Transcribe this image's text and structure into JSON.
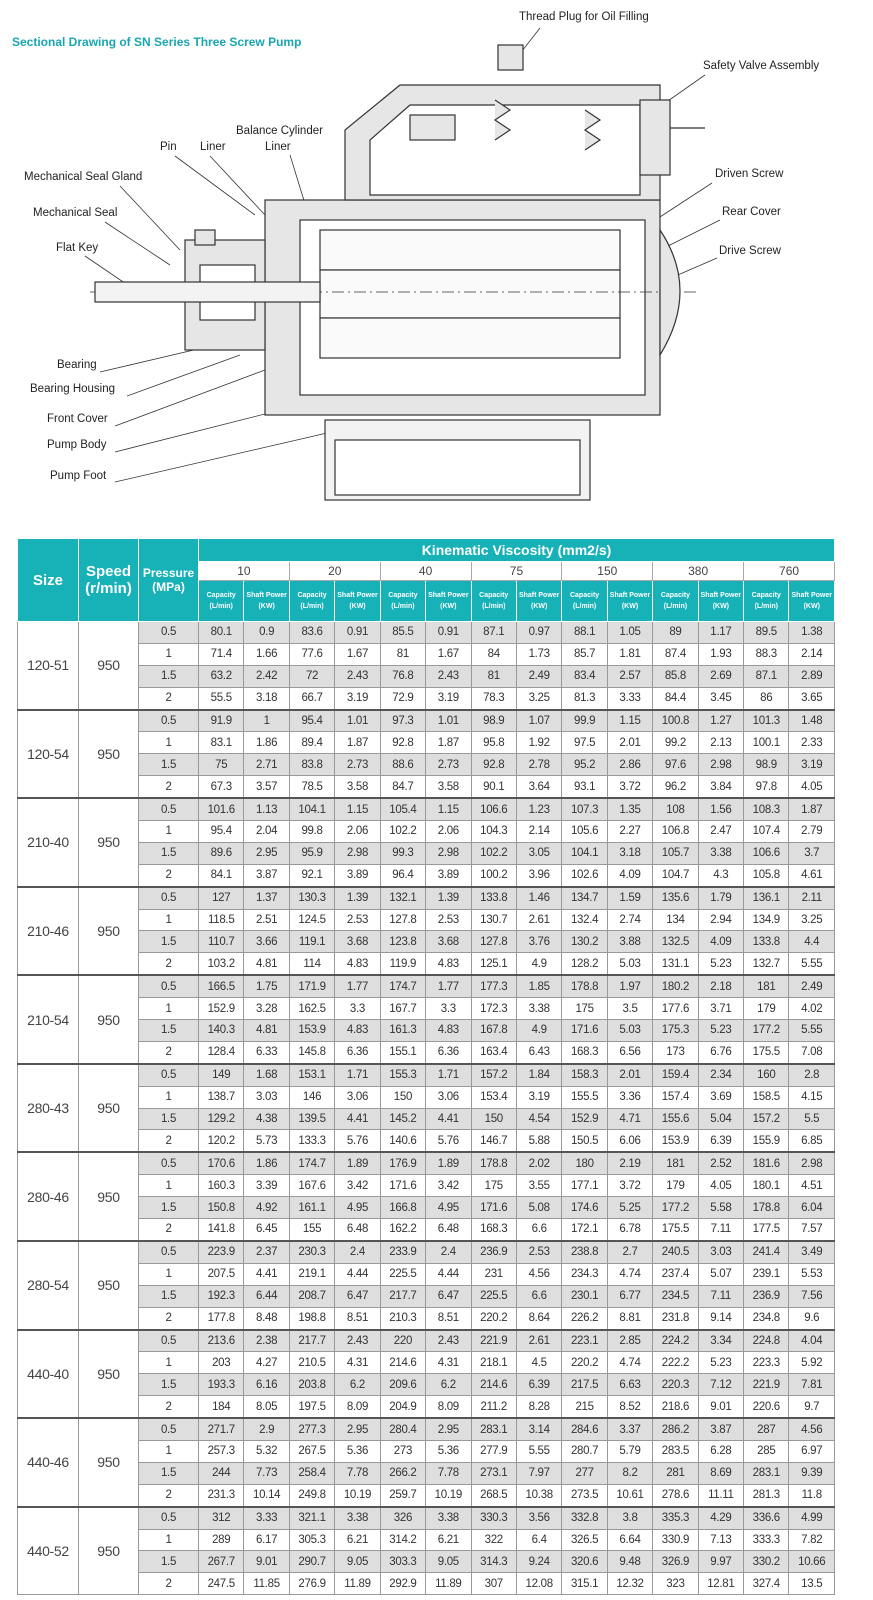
{
  "title": "Sectional Drawing of SN Series Three Screw Pump",
  "labels": {
    "thread_plug": "Thread Plug for Oil Filling",
    "safety_valve": "Safety Valve Assembly",
    "driven_screw": "Driven Screw",
    "rear_cover": "Rear Cover",
    "drive_screw": "Drive Screw",
    "balance_cylinder": "Balance Cylinder",
    "balance_liner": "Liner",
    "pin": "Pin",
    "liner": "Liner",
    "mech_seal_gland": "Mechanical Seal Gland",
    "mech_seal": "Mechanical Seal",
    "flat_key": "Flat Key",
    "bearing": "Bearing",
    "bearing_housing": "Bearing Housing",
    "front_cover": "Front Cover",
    "pump_body": "Pump Body",
    "pump_foot": "Pump Foot"
  },
  "colors": {
    "accent": "#17b1b8",
    "row_shade": "#dedede"
  },
  "table": {
    "headers": {
      "size": "Size",
      "speed": "Speed (r/min)",
      "pressure": "Pressure (MPa)",
      "kinematic": "Kinematic Viscosity (mm2/s)",
      "capacity": "Capacity (L/min)",
      "shaft_power": "Shaft Power (KW)"
    },
    "viscosities": [
      "10",
      "20",
      "40",
      "75",
      "150",
      "380",
      "760"
    ],
    "groups": [
      {
        "size": "120-51",
        "speed": "950",
        "rows": [
          [
            "0.5",
            "80.1",
            "0.9",
            "83.6",
            "0.91",
            "85.5",
            "0.91",
            "87.1",
            "0.97",
            "88.1",
            "1.05",
            "89",
            "1.17",
            "89.5",
            "1.38"
          ],
          [
            "1",
            "71.4",
            "1.66",
            "77.6",
            "1.67",
            "81",
            "1.67",
            "84",
            "1.73",
            "85.7",
            "1.81",
            "87.4",
            "1.93",
            "88.3",
            "2.14"
          ],
          [
            "1.5",
            "63.2",
            "2.42",
            "72",
            "2.43",
            "76.8",
            "2.43",
            "81",
            "2.49",
            "83.4",
            "2.57",
            "85.8",
            "2.69",
            "87.1",
            "2.89"
          ],
          [
            "2",
            "55.5",
            "3.18",
            "66.7",
            "3.19",
            "72.9",
            "3.19",
            "78.3",
            "3.25",
            "81.3",
            "3.33",
            "84.4",
            "3.45",
            "86",
            "3.65"
          ]
        ]
      },
      {
        "size": "120-54",
        "speed": "950",
        "rows": [
          [
            "0.5",
            "91.9",
            "1",
            "95.4",
            "1.01",
            "97.3",
            "1.01",
            "98.9",
            "1.07",
            "99.9",
            "1.15",
            "100.8",
            "1.27",
            "101.3",
            "1.48"
          ],
          [
            "1",
            "83.1",
            "1.86",
            "89.4",
            "1.87",
            "92.8",
            "1.87",
            "95.8",
            "1.92",
            "97.5",
            "2.01",
            "99.2",
            "2.13",
            "100.1",
            "2.33"
          ],
          [
            "1.5",
            "75",
            "2.71",
            "83.8",
            "2.73",
            "88.6",
            "2.73",
            "92.8",
            "2.78",
            "95.2",
            "2.86",
            "97.6",
            "2.98",
            "98.9",
            "3.19"
          ],
          [
            "2",
            "67.3",
            "3.57",
            "78.5",
            "3.58",
            "84.7",
            "3.58",
            "90.1",
            "3.64",
            "93.1",
            "3.72",
            "96.2",
            "3.84",
            "97.8",
            "4.05"
          ]
        ]
      },
      {
        "size": "210-40",
        "speed": "950",
        "rows": [
          [
            "0.5",
            "101.6",
            "1.13",
            "104.1",
            "1.15",
            "105.4",
            "1.15",
            "106.6",
            "1.23",
            "107.3",
            "1.35",
            "108",
            "1.56",
            "108.3",
            "1.87"
          ],
          [
            "1",
            "95.4",
            "2.04",
            "99.8",
            "2.06",
            "102.2",
            "2.06",
            "104.3",
            "2.14",
            "105.6",
            "2.27",
            "106.8",
            "2.47",
            "107.4",
            "2.79"
          ],
          [
            "1.5",
            "89.6",
            "2.95",
            "95.9",
            "2.98",
            "99.3",
            "2.98",
            "102.2",
            "3.05",
            "104.1",
            "3.18",
            "105.7",
            "3.38",
            "106.6",
            "3.7"
          ],
          [
            "2",
            "84.1",
            "3.87",
            "92.1",
            "3.89",
            "96.4",
            "3.89",
            "100.2",
            "3.96",
            "102.6",
            "4.09",
            "104.7",
            "4.3",
            "105.8",
            "4.61"
          ]
        ]
      },
      {
        "size": "210-46",
        "speed": "950",
        "rows": [
          [
            "0.5",
            "127",
            "1.37",
            "130.3",
            "1.39",
            "132.1",
            "1.39",
            "133.8",
            "1.46",
            "134.7",
            "1.59",
            "135.6",
            "1.79",
            "136.1",
            "2.11"
          ],
          [
            "1",
            "118.5",
            "2.51",
            "124.5",
            "2.53",
            "127.8",
            "2.53",
            "130.7",
            "2.61",
            "132.4",
            "2.74",
            "134",
            "2.94",
            "134.9",
            "3.25"
          ],
          [
            "1.5",
            "110.7",
            "3.66",
            "119.1",
            "3.68",
            "123.8",
            "3.68",
            "127.8",
            "3.76",
            "130.2",
            "3.88",
            "132.5",
            "4.09",
            "133.8",
            "4.4"
          ],
          [
            "2",
            "103.2",
            "4.81",
            "114",
            "4.83",
            "119.9",
            "4.83",
            "125.1",
            "4.9",
            "128.2",
            "5.03",
            "131.1",
            "5.23",
            "132.7",
            "5.55"
          ]
        ]
      },
      {
        "size": "210-54",
        "speed": "950",
        "rows": [
          [
            "0.5",
            "166.5",
            "1.75",
            "171.9",
            "1.77",
            "174.7",
            "1.77",
            "177.3",
            "1.85",
            "178.8",
            "1.97",
            "180.2",
            "2.18",
            "181",
            "2.49"
          ],
          [
            "1",
            "152.9",
            "3.28",
            "162.5",
            "3.3",
            "167.7",
            "3.3",
            "172.3",
            "3.38",
            "175",
            "3.5",
            "177.6",
            "3.71",
            "179",
            "4.02"
          ],
          [
            "1.5",
            "140.3",
            "4.81",
            "153.9",
            "4.83",
            "161.3",
            "4.83",
            "167.8",
            "4.9",
            "171.6",
            "5.03",
            "175.3",
            "5.23",
            "177.2",
            "5.55"
          ],
          [
            "2",
            "128.4",
            "6.33",
            "145.8",
            "6.36",
            "155.1",
            "6.36",
            "163.4",
            "6.43",
            "168.3",
            "6.56",
            "173",
            "6.76",
            "175.5",
            "7.08"
          ]
        ]
      },
      {
        "size": "280-43",
        "speed": "950",
        "rows": [
          [
            "0.5",
            "149",
            "1.68",
            "153.1",
            "1.71",
            "155.3",
            "1.71",
            "157.2",
            "1.84",
            "158.3",
            "2.01",
            "159.4",
            "2.34",
            "160",
            "2.8"
          ],
          [
            "1",
            "138.7",
            "3.03",
            "146",
            "3.06",
            "150",
            "3.06",
            "153.4",
            "3.19",
            "155.5",
            "3.36",
            "157.4",
            "3.69",
            "158.5",
            "4.15"
          ],
          [
            "1.5",
            "129.2",
            "4.38",
            "139.5",
            "4.41",
            "145.2",
            "4.41",
            "150",
            "4.54",
            "152.9",
            "4.71",
            "155.6",
            "5.04",
            "157.2",
            "5.5"
          ],
          [
            "2",
            "120.2",
            "5.73",
            "133.3",
            "5.76",
            "140.6",
            "5.76",
            "146.7",
            "5.88",
            "150.5",
            "6.06",
            "153.9",
            "6.39",
            "155.9",
            "6.85"
          ]
        ]
      },
      {
        "size": "280-46",
        "speed": "950",
        "rows": [
          [
            "0.5",
            "170.6",
            "1.86",
            "174.7",
            "1.89",
            "176.9",
            "1.89",
            "178.8",
            "2.02",
            "180",
            "2.19",
            "181",
            "2.52",
            "181.6",
            "2.98"
          ],
          [
            "1",
            "160.3",
            "3.39",
            "167.6",
            "3.42",
            "171.6",
            "3.42",
            "175",
            "3.55",
            "177.1",
            "3.72",
            "179",
            "4.05",
            "180.1",
            "4.51"
          ],
          [
            "1.5",
            "150.8",
            "4.92",
            "161.1",
            "4.95",
            "166.8",
            "4.95",
            "171.6",
            "5.08",
            "174.6",
            "5.25",
            "177.2",
            "5.58",
            "178.8",
            "6.04"
          ],
          [
            "2",
            "141.8",
            "6.45",
            "155",
            "6.48",
            "162.2",
            "6.48",
            "168.3",
            "6.6",
            "172.1",
            "6.78",
            "175.5",
            "7.11",
            "177.5",
            "7.57"
          ]
        ]
      },
      {
        "size": "280-54",
        "speed": "950",
        "rows": [
          [
            "0.5",
            "223.9",
            "2.37",
            "230.3",
            "2.4",
            "233.9",
            "2.4",
            "236.9",
            "2.53",
            "238.8",
            "2.7",
            "240.5",
            "3.03",
            "241.4",
            "3.49"
          ],
          [
            "1",
            "207.5",
            "4.41",
            "219.1",
            "4.44",
            "225.5",
            "4.44",
            "231",
            "4.56",
            "234.3",
            "4.74",
            "237.4",
            "5.07",
            "239.1",
            "5.53"
          ],
          [
            "1.5",
            "192.3",
            "6.44",
            "208.7",
            "6.47",
            "217.7",
            "6.47",
            "225.5",
            "6.6",
            "230.1",
            "6.77",
            "234.5",
            "7.11",
            "236.9",
            "7.56"
          ],
          [
            "2",
            "177.8",
            "8.48",
            "198.8",
            "8.51",
            "210.3",
            "8.51",
            "220.2",
            "8.64",
            "226.2",
            "8.81",
            "231.8",
            "9.14",
            "234.8",
            "9.6"
          ]
        ]
      },
      {
        "size": "440-40",
        "speed": "950",
        "rows": [
          [
            "0.5",
            "213.6",
            "2.38",
            "217.7",
            "2.43",
            "220",
            "2.43",
            "221.9",
            "2.61",
            "223.1",
            "2.85",
            "224.2",
            "3.34",
            "224.8",
            "4.04"
          ],
          [
            "1",
            "203",
            "4.27",
            "210.5",
            "4.31",
            "214.6",
            "4.31",
            "218.1",
            "4.5",
            "220.2",
            "4.74",
            "222.2",
            "5.23",
            "223.3",
            "5.92"
          ],
          [
            "1.5",
            "193.3",
            "6.16",
            "203.8",
            "6.2",
            "209.6",
            "6.2",
            "214.6",
            "6.39",
            "217.5",
            "6.63",
            "220.3",
            "7.12",
            "221.9",
            "7.81"
          ],
          [
            "2",
            "184",
            "8.05",
            "197.5",
            "8.09",
            "204.9",
            "8.09",
            "211.2",
            "8.28",
            "215",
            "8.52",
            "218.6",
            "9.01",
            "220.6",
            "9.7"
          ]
        ]
      },
      {
        "size": "440-46",
        "speed": "950",
        "rows": [
          [
            "0.5",
            "271.7",
            "2.9",
            "277.3",
            "2.95",
            "280.4",
            "2.95",
            "283.1",
            "3.14",
            "284.6",
            "3.37",
            "286.2",
            "3.87",
            "287",
            "4.56"
          ],
          [
            "1",
            "257.3",
            "5.32",
            "267.5",
            "5.36",
            "273",
            "5.36",
            "277.9",
            "5.55",
            "280.7",
            "5.79",
            "283.5",
            "6.28",
            "285",
            "6.97"
          ],
          [
            "1.5",
            "244",
            "7.73",
            "258.4",
            "7.78",
            "266.2",
            "7.78",
            "273.1",
            "7.97",
            "277",
            "8.2",
            "281",
            "8.69",
            "283.1",
            "9.39"
          ],
          [
            "2",
            "231.3",
            "10.14",
            "249.8",
            "10.19",
            "259.7",
            "10.19",
            "268.5",
            "10.38",
            "273.5",
            "10.61",
            "278.6",
            "11.11",
            "281.3",
            "11.8"
          ]
        ]
      },
      {
        "size": "440-52",
        "speed": "950",
        "rows": [
          [
            "0.5",
            "312",
            "3.33",
            "321.1",
            "3.38",
            "326",
            "3.38",
            "330.3",
            "3.56",
            "332.8",
            "3.8",
            "335.3",
            "4.29",
            "336.6",
            "4.99"
          ],
          [
            "1",
            "289",
            "6.17",
            "305.3",
            "6.21",
            "314.2",
            "6.21",
            "322",
            "6.4",
            "326.5",
            "6.64",
            "330.9",
            "7.13",
            "333.3",
            "7.82"
          ],
          [
            "1.5",
            "267.7",
            "9.01",
            "290.7",
            "9.05",
            "303.3",
            "9.05",
            "314.3",
            "9.24",
            "320.6",
            "9.48",
            "326.9",
            "9.97",
            "330.2",
            "10.66"
          ],
          [
            "2",
            "247.5",
            "11.85",
            "276.9",
            "11.89",
            "292.9",
            "11.89",
            "307",
            "12.08",
            "315.1",
            "12.32",
            "323",
            "12.81",
            "327.4",
            "13.5"
          ]
        ]
      }
    ]
  }
}
